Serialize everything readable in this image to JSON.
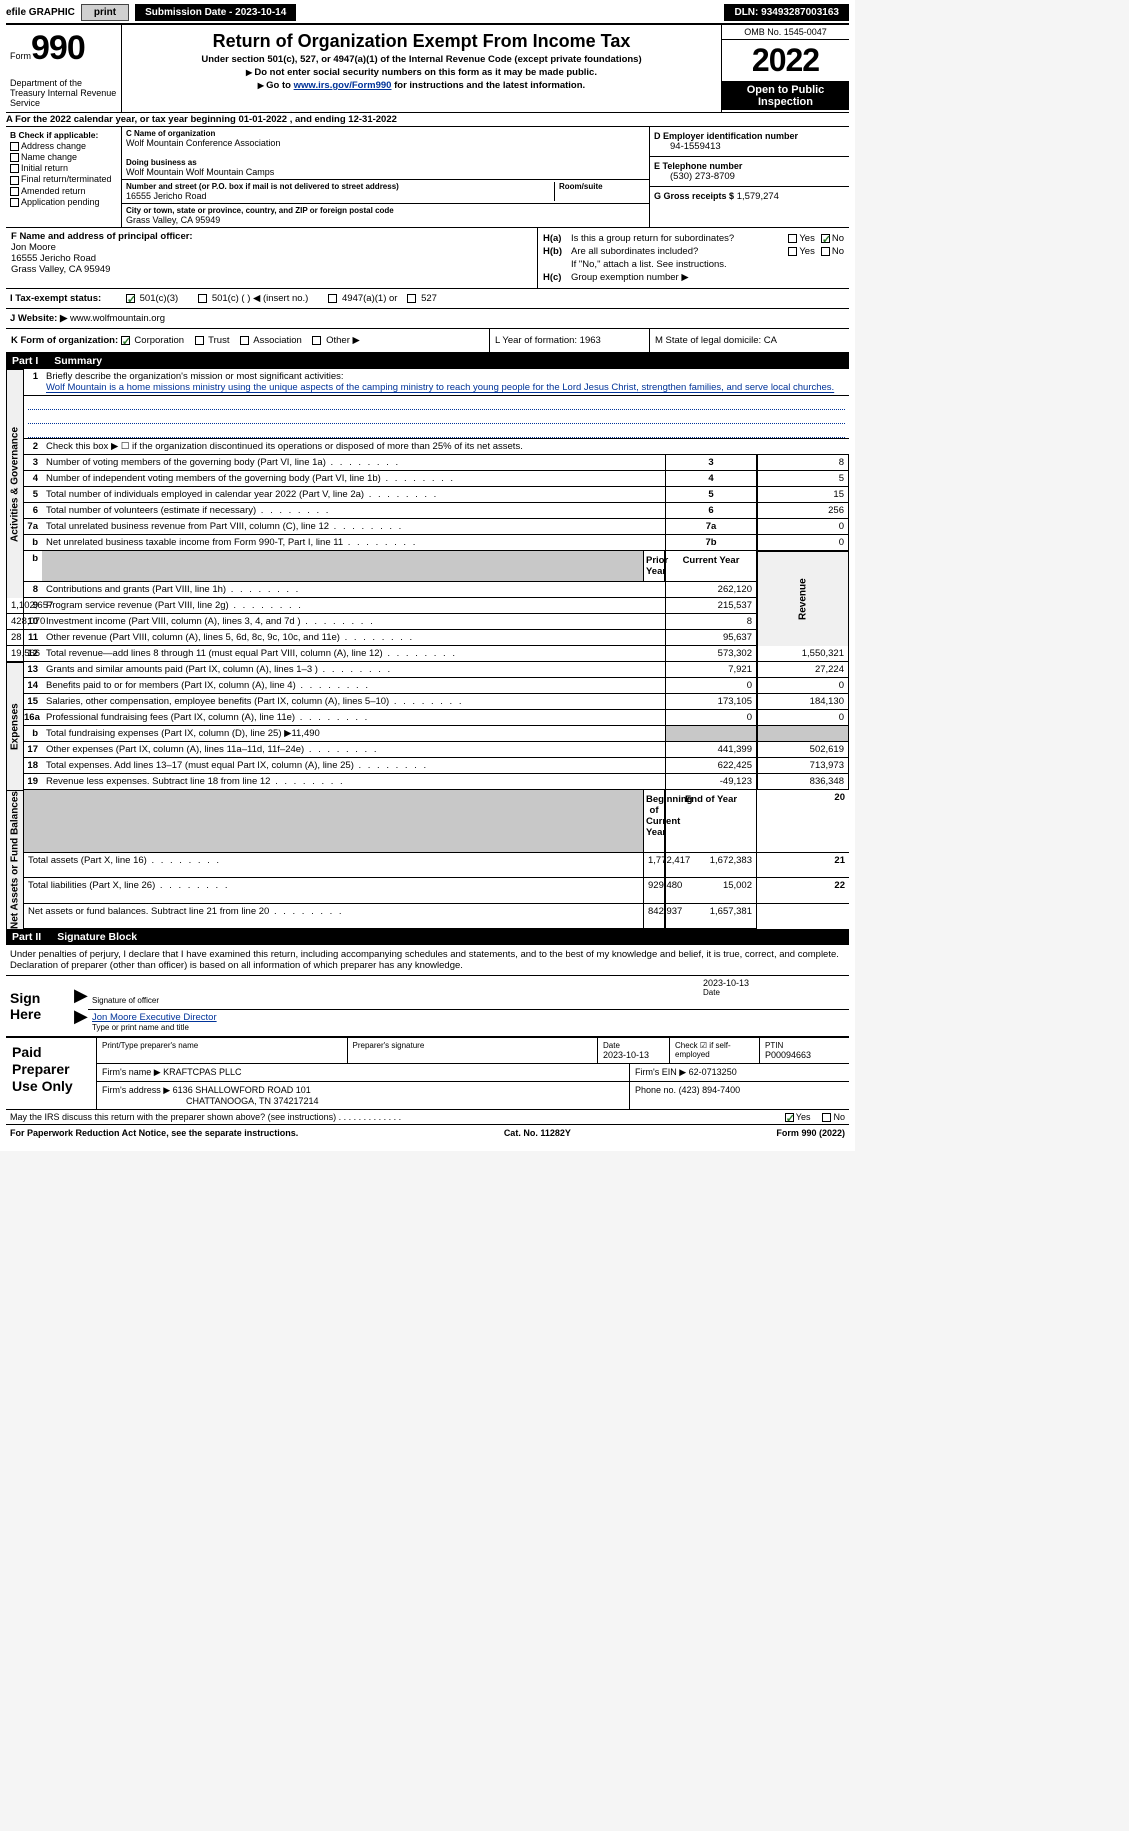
{
  "top_bar": {
    "efile": "efile GRAPHIC",
    "print": "print",
    "submission_label": "Submission Date - 2023-10-14",
    "dln": "DLN: 93493287003163"
  },
  "header": {
    "form_word": "Form",
    "form_num": "990",
    "dept": "Department of the Treasury Internal Revenue Service",
    "title": "Return of Organization Exempt From Income Tax",
    "sub1": "Under section 501(c), 527, or 4947(a)(1) of the Internal Revenue Code (except private foundations)",
    "sub2": "Do not enter social security numbers on this form as it may be made public.",
    "link_text": "Go to www.irs.gov/Form990 for instructions and the latest information.",
    "link_url": "www.irs.gov/Form990",
    "omb": "OMB No. 1545-0047",
    "year": "2022",
    "open": "Open to Public Inspection"
  },
  "row_A": "A For the 2022 calendar year, or tax year beginning 01-01-2022    , and ending 12-31-2022",
  "col_B": {
    "label": "B Check if applicable:",
    "items": [
      "Address change",
      "Name change",
      "Initial return",
      "Final return/terminated",
      "Amended return",
      "Application pending"
    ]
  },
  "col_C": {
    "name_label": "C Name of organization",
    "name": "Wolf Mountain Conference Association",
    "dba_label": "Doing business as",
    "dba": "Wolf Mountain Wolf Mountain Camps",
    "street_label": "Number and street (or P.O. box if mail is not delivered to street address)",
    "street": "16555 Jericho Road",
    "room_label": "Room/suite",
    "room": "",
    "city_label": "City or town, state or province, country, and ZIP or foreign postal code",
    "city": "Grass Valley, CA  95949"
  },
  "col_D": {
    "ein_label": "D Employer identification number",
    "ein": "94-1559413",
    "tel_label": "E Telephone number",
    "tel": "(530) 273-8709",
    "gross_label": "G Gross receipts $",
    "gross": "1,579,274"
  },
  "col_F": {
    "label": "F Name and address of principal officer:",
    "name": "Jon Moore",
    "street": "16555 Jericho Road",
    "city": "Grass Valley, CA  95949"
  },
  "col_H": {
    "a_lbl": "H(a)",
    "a_q": "Is this a group return for subordinates?",
    "b_lbl": "H(b)",
    "b_q": "Are all subordinates included?",
    "b_note": "If \"No,\" attach a list. See instructions.",
    "c_lbl": "H(c)",
    "c_q": "Group exemption number ▶",
    "yes": "Yes",
    "no": "No"
  },
  "row_I": {
    "label": "I    Tax-exempt status:",
    "o1": "501(c)(3)",
    "o2": "501(c) (  ) ◀ (insert no.)",
    "o3": "4947(a)(1) or",
    "o4": "527"
  },
  "row_J": {
    "label": "J    Website: ▶",
    "url": "www.wolfmountain.org"
  },
  "row_KLM": {
    "K_label": "K Form of organization:",
    "K_opts": [
      "Corporation",
      "Trust",
      "Association",
      "Other ▶"
    ],
    "L": "L Year of formation: 1963",
    "M": "M State of legal domicile: CA"
  },
  "part1": {
    "no": "Part I",
    "name": "Summary"
  },
  "line1": {
    "label": "Briefly describe the organization's mission or most significant activities:",
    "text": "Wolf Mountain is a home missions ministry using the unique aspects of the camping ministry to reach young people for the Lord Jesus Christ, strengthen families, and serve local churches."
  },
  "line2": "Check this box ▶ ☐ if the organization discontinued its operations or disposed of more than 25% of its net assets.",
  "summary": {
    "vlabels": [
      "Activities & Governance",
      "Revenue",
      "Expenses",
      "Net Assets or Fund Balances"
    ],
    "hdr_prior": "Prior Year",
    "hdr_current": "Current Year",
    "hdr_begin": "Beginning of Current Year",
    "hdr_end": "End of Year",
    "lines": [
      {
        "n": "3",
        "d": "Number of voting members of the governing body (Part VI, line 1a)",
        "box": "3",
        "v2": "8"
      },
      {
        "n": "4",
        "d": "Number of independent voting members of the governing body (Part VI, line 1b)",
        "box": "4",
        "v2": "5"
      },
      {
        "n": "5",
        "d": "Total number of individuals employed in calendar year 2022 (Part V, line 2a)",
        "box": "5",
        "v2": "15"
      },
      {
        "n": "6",
        "d": "Total number of volunteers (estimate if necessary)",
        "box": "6",
        "v2": "256"
      },
      {
        "n": "7a",
        "d": "Total unrelated business revenue from Part VIII, column (C), line 12",
        "box": "7a",
        "v2": "0"
      },
      {
        "n": "b",
        "d": "Net unrelated business taxable income from Form 990-T, Part I, line 11",
        "box": "7b",
        "v2": "0"
      }
    ],
    "rev": [
      {
        "n": "8",
        "d": "Contributions and grants (Part VIII, line 1h)",
        "v1": "262,120",
        "v2": "1,102,657"
      },
      {
        "n": "9",
        "d": "Program service revenue (Part VIII, line 2g)",
        "v1": "215,537",
        "v2": "428,070"
      },
      {
        "n": "10",
        "d": "Investment income (Part VIII, column (A), lines 3, 4, and 7d )",
        "v1": "8",
        "v2": "28"
      },
      {
        "n": "11",
        "d": "Other revenue (Part VIII, column (A), lines 5, 6d, 8c, 9c, 10c, and 11e)",
        "v1": "95,637",
        "v2": "19,566"
      },
      {
        "n": "12",
        "d": "Total revenue—add lines 8 through 11 (must equal Part VIII, column (A), line 12)",
        "v1": "573,302",
        "v2": "1,550,321"
      }
    ],
    "exp": [
      {
        "n": "13",
        "d": "Grants and similar amounts paid (Part IX, column (A), lines 1–3 )",
        "v1": "7,921",
        "v2": "27,224"
      },
      {
        "n": "14",
        "d": "Benefits paid to or for members (Part IX, column (A), line 4)",
        "v1": "0",
        "v2": "0"
      },
      {
        "n": "15",
        "d": "Salaries, other compensation, employee benefits (Part IX, column (A), lines 5–10)",
        "v1": "173,105",
        "v2": "184,130"
      },
      {
        "n": "16a",
        "d": "Professional fundraising fees (Part IX, column (A), line 11e)",
        "v1": "0",
        "v2": "0"
      },
      {
        "n": "b",
        "d": "Total fundraising expenses (Part IX, column (D), line 25) ▶11,490",
        "v1": "",
        "v2": "",
        "shade": true
      },
      {
        "n": "17",
        "d": "Other expenses (Part IX, column (A), lines 11a–11d, 11f–24e)",
        "v1": "441,399",
        "v2": "502,619"
      },
      {
        "n": "18",
        "d": "Total expenses. Add lines 13–17 (must equal Part IX, column (A), line 25)",
        "v1": "622,425",
        "v2": "713,973"
      },
      {
        "n": "19",
        "d": "Revenue less expenses. Subtract line 18 from line 12",
        "v1": "-49,123",
        "v2": "836,348"
      }
    ],
    "net": [
      {
        "n": "20",
        "d": "Total assets (Part X, line 16)",
        "v1": "1,772,417",
        "v2": "1,672,383"
      },
      {
        "n": "21",
        "d": "Total liabilities (Part X, line 26)",
        "v1": "929,480",
        "v2": "15,002"
      },
      {
        "n": "22",
        "d": "Net assets or fund balances. Subtract line 21 from line 20",
        "v1": "842,937",
        "v2": "1,657,381"
      }
    ]
  },
  "part2": {
    "no": "Part II",
    "name": "Signature Block"
  },
  "sig_text": "Under penalties of perjury, I declare that I have examined this return, including accompanying schedules and statements, and to the best of my knowledge and belief, it is true, correct, and complete. Declaration of preparer (other than officer) is based on all information of which preparer has any knowledge.",
  "sig": {
    "here": "Sign Here",
    "sig_of_officer": "Signature of officer",
    "date": "2023-10-13",
    "date_lbl": "Date",
    "name": "Jon Moore Executive Director",
    "type_lbl": "Type or print name and title"
  },
  "prep": {
    "lbl": "Paid Preparer Use Only",
    "print_lbl": "Print/Type preparer's name",
    "sig_lbl": "Preparer's signature",
    "date_lbl": "Date",
    "date": "2023-10-13",
    "check_lbl": "Check ☑ if self-employed",
    "ptin_lbl": "PTIN",
    "ptin": "P00094663",
    "firm_name_lbl": "Firm's name    ▶",
    "firm_name": "KRAFTCPAS PLLC",
    "firm_ein_lbl": "Firm's EIN ▶",
    "firm_ein": "62-0713250",
    "firm_addr_lbl": "Firm's address ▶",
    "firm_addr1": "6136 SHALLOWFORD ROAD 101",
    "firm_addr2": "CHATTANOOGA, TN  374217214",
    "phone_lbl": "Phone no.",
    "phone": "(423) 894-7400"
  },
  "foot": {
    "discuss": "May the IRS discuss this return with the preparer shown above? (see instructions)",
    "yes": "Yes",
    "no": "No",
    "pra": "For Paperwork Reduction Act Notice, see the separate instructions.",
    "cat": "Cat. No. 11282Y",
    "form": "Form 990 (2022)"
  }
}
